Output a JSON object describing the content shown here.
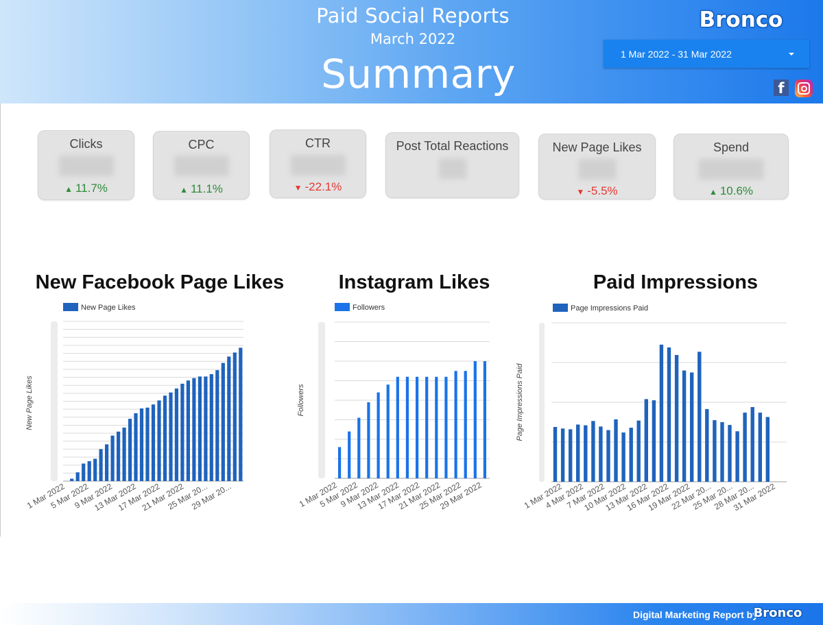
{
  "header": {
    "report_title": "Paid Social Reports",
    "report_month": "March 2022",
    "page_title": "Summary",
    "brand": "Bronco",
    "date_range": "1 Mar 2022 - 31 Mar 2022",
    "facebook_glyph": "f",
    "icons": [
      "facebook-icon",
      "instagram-icon",
      "chevron-down-icon"
    ]
  },
  "scorecards": [
    {
      "label": "Clicks",
      "delta": "11.7%",
      "direction": "up"
    },
    {
      "label": "CPC",
      "delta": "11.1%",
      "direction": "up"
    },
    {
      "label": "CTR",
      "delta": "-22.1%",
      "direction": "down"
    },
    {
      "label": "Post Total Reactions",
      "delta": "",
      "direction": "none"
    },
    {
      "label": "New Page Likes",
      "delta": "-5.5%",
      "direction": "down"
    },
    {
      "label": "Spend",
      "delta": "10.6%",
      "direction": "up"
    }
  ],
  "colors": {
    "up": "#2e8b3a",
    "down": "#e53935",
    "bar_dark": "#1f63bc",
    "bar_bright": "#1a73e8"
  },
  "chart_data": [
    {
      "type": "bar",
      "title": "New Facebook Page Likes",
      "legend": "New Page Likes",
      "ylabel": "New Page Likes",
      "xlabel": "",
      "grid": true,
      "legend_position": "top-left",
      "color": "#1f63bc",
      "ylim": [
        0,
        20
      ],
      "ytick_count": 21,
      "x_tick_labels": [
        "1 Mar 2022",
        "5 Mar 2022",
        "9 Mar 2022",
        "13 Mar 2022",
        "17 Mar 2022",
        "21 Mar 2022",
        "25 Mar 20...",
        "29 Mar 20..."
      ],
      "x": [
        "1 Mar 2022",
        "2 Mar 2022",
        "3 Mar 2022",
        "4 Mar 2022",
        "5 Mar 2022",
        "6 Mar 2022",
        "7 Mar 2022",
        "8 Mar 2022",
        "9 Mar 2022",
        "10 Mar 2022",
        "11 Mar 2022",
        "12 Mar 2022",
        "13 Mar 2022",
        "14 Mar 2022",
        "15 Mar 2022",
        "16 Mar 2022",
        "17 Mar 2022",
        "18 Mar 2022",
        "19 Mar 2022",
        "20 Mar 2022",
        "21 Mar 2022",
        "22 Mar 2022",
        "23 Mar 2022",
        "24 Mar 2022",
        "25 Mar 2022",
        "26 Mar 2022",
        "27 Mar 2022",
        "28 Mar 2022",
        "29 Mar 2022",
        "30 Mar 2022",
        "31 Mar 2022"
      ],
      "values": [
        0.0,
        0.3,
        1.1,
        2.2,
        2.5,
        2.8,
        4.0,
        4.6,
        5.7,
        6.2,
        6.7,
        7.8,
        8.5,
        9.1,
        9.2,
        9.6,
        10.1,
        10.7,
        11.1,
        11.6,
        12.2,
        12.6,
        12.9,
        13.1,
        13.1,
        13.4,
        13.9,
        14.8,
        15.6,
        16.1,
        16.7
      ]
    },
    {
      "type": "bar",
      "title": "Instagram Likes",
      "legend": "Followers",
      "ylabel": "Followers",
      "xlabel": "",
      "grid": true,
      "legend_position": "top-left",
      "color": "#1a73e8",
      "ylim": [
        0,
        8
      ],
      "ytick_count": 9,
      "x_tick_labels": [
        "1 Mar 2022",
        "5 Mar 2022",
        "9 Mar 2022",
        "13 Mar 2022",
        "17 Mar 2022",
        "21 Mar 2022",
        "25 Mar 2022",
        "29 Mar 2022"
      ],
      "x": [
        "1 Mar 2022",
        "3 Mar 2022",
        "5 Mar 2022",
        "7 Mar 2022",
        "9 Mar 2022",
        "11 Mar 2022",
        "13 Mar 2022",
        "15 Mar 2022",
        "17 Mar 2022",
        "19 Mar 2022",
        "21 Mar 2022",
        "23 Mar 2022",
        "25 Mar 2022",
        "27 Mar 2022",
        "29 Mar 2022",
        "31 Mar 2022"
      ],
      "values": [
        1.6,
        2.4,
        3.1,
        3.9,
        4.4,
        4.8,
        5.2,
        5.2,
        5.2,
        5.2,
        5.2,
        5.2,
        5.5,
        5.5,
        6.0,
        6.0
      ]
    },
    {
      "type": "bar",
      "title": "Paid Impressions",
      "legend": "Page Impressions Paid",
      "ylabel": "Page Impressions Paid",
      "xlabel": "",
      "grid": true,
      "legend_position": "top-left",
      "color": "#1f63bc",
      "ylim": [
        0,
        4
      ],
      "ytick_count": 5,
      "x_tick_labels": [
        "1 Mar 2022",
        "4 Mar 2022",
        "7 Mar 2022",
        "10 Mar 2022",
        "13 Mar 2022",
        "16 Mar 2022",
        "19 Mar 2022",
        "22 Mar 20...",
        "25 Mar 20...",
        "28 Mar 20...",
        "31 Mar 2022"
      ],
      "x": [
        "1 Mar 2022",
        "2 Mar 2022",
        "3 Mar 2022",
        "4 Mar 2022",
        "5 Mar 2022",
        "6 Mar 2022",
        "7 Mar 2022",
        "8 Mar 2022",
        "9 Mar 2022",
        "10 Mar 2022",
        "11 Mar 2022",
        "12 Mar 2022",
        "13 Mar 2022",
        "14 Mar 2022",
        "15 Mar 2022",
        "16 Mar 2022",
        "17 Mar 2022",
        "18 Mar 2022",
        "19 Mar 2022",
        "20 Mar 2022",
        "21 Mar 2022",
        "22 Mar 2022",
        "23 Mar 2022",
        "24 Mar 2022",
        "25 Mar 2022",
        "26 Mar 2022",
        "27 Mar 2022",
        "28 Mar 2022",
        "29 Mar 2022",
        "30 Mar 2022",
        "31 Mar 2022"
      ],
      "values": [
        1.38,
        1.34,
        1.32,
        1.44,
        1.42,
        1.53,
        1.39,
        1.3,
        1.57,
        1.24,
        1.36,
        1.54,
        2.08,
        2.05,
        3.45,
        3.38,
        3.19,
        2.8,
        2.75,
        3.27,
        1.83,
        1.55,
        1.5,
        1.43,
        1.27,
        1.74,
        1.88,
        1.74,
        1.63,
        0,
        0
      ]
    }
  ],
  "footer": {
    "text": "Digital Marketing Report by",
    "brand": "Bronco"
  }
}
